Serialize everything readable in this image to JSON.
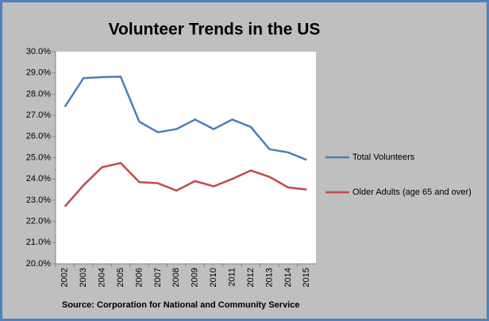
{
  "chart_data": {
    "type": "line",
    "title": "Volunteer Trends in the US",
    "source": "Source: Corporation for National and Community Service",
    "categories": [
      "2002",
      "2003",
      "2004",
      "2005",
      "2006",
      "2007",
      "2008",
      "2009",
      "2010",
      "2011",
      "2012",
      "2013",
      "2014",
      "2015"
    ],
    "series": [
      {
        "name": "Total Volunteers",
        "color": "#4a7ebb",
        "values": [
          27.4,
          28.75,
          28.8,
          28.82,
          26.7,
          26.2,
          26.35,
          26.8,
          26.35,
          26.8,
          26.45,
          25.4,
          25.25,
          24.9
        ]
      },
      {
        "name": "Older Adults (age 65 and over)",
        "color": "#be4b48",
        "values": [
          22.7,
          23.7,
          24.55,
          24.75,
          23.85,
          23.8,
          23.45,
          23.9,
          23.65,
          24.0,
          24.4,
          24.1,
          23.6,
          23.5
        ]
      }
    ],
    "ylim": [
      20,
      30
    ],
    "yticks": [
      {
        "value": 20,
        "label": "20.0%"
      },
      {
        "value": 21,
        "label": "21.0%"
      },
      {
        "value": 22,
        "label": "22.0%"
      },
      {
        "value": 23,
        "label": "23.0%"
      },
      {
        "value": 24,
        "label": "24.0%"
      },
      {
        "value": 25,
        "label": "25.0%"
      },
      {
        "value": 26,
        "label": "26.0%"
      },
      {
        "value": 27,
        "label": "27.0%"
      },
      {
        "value": 28,
        "label": "28.0%"
      },
      {
        "value": 29,
        "label": "29.0%"
      },
      {
        "value": 30,
        "label": "30.0%"
      }
    ],
    "grid": false,
    "legend": "right"
  }
}
